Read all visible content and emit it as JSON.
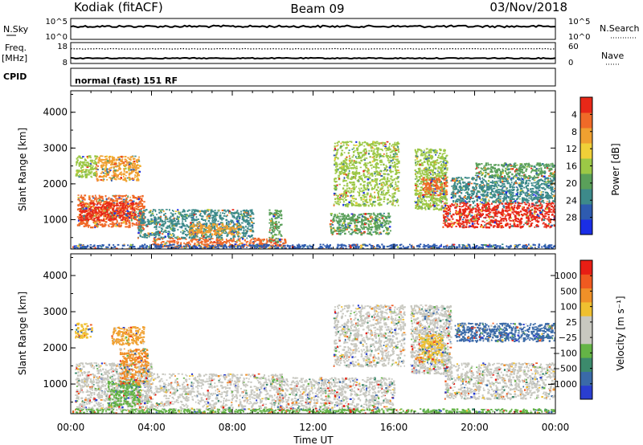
{
  "header": {
    "station": "Kodiak (fitACF)",
    "beam": "Beam 09",
    "date": "03/Nov/2018"
  },
  "strips": {
    "nsky": {
      "label": "N.Sky",
      "ticks": [
        "10^5",
        "10^0"
      ],
      "right_label": "N.Search",
      "right_ticks": [
        "10^5",
        "10^0"
      ],
      "line_level": 0.62
    },
    "freq": {
      "label": "Freq.",
      "unit": "[MHz]",
      "ticks": [
        "18",
        "8"
      ],
      "right_label": "Nave",
      "right_ticks": [
        "60",
        "0"
      ],
      "dotted_level": 0.7,
      "solid_level": 0.25
    },
    "cpid": {
      "label": "CPID",
      "text": "normal (fast) 151 RF"
    }
  },
  "chart_data": [
    {
      "type": "heatmap",
      "name": "power",
      "xlabel": "",
      "ylabel": "Slant Range [km]",
      "x_ticks": [
        "00:00",
        "04:00",
        "08:00",
        "12:00",
        "16:00",
        "20:00",
        "00:00"
      ],
      "x_range_hours": [
        0,
        24
      ],
      "y_ticks": [
        "1000",
        "2000",
        "3000",
        "4000"
      ],
      "y_range_km": [
        180,
        4600
      ],
      "colorbar": {
        "label": "Power [dB]",
        "ticks": [
          "4",
          "8",
          "12",
          "16",
          "20",
          "24",
          "28"
        ],
        "colors": [
          "#1a2ee6",
          "#2e5bb0",
          "#3d8a8a",
          "#5aa05a",
          "#9cc846",
          "#f0d038",
          "#f0a030",
          "#f06a28",
          "#e82818"
        ]
      },
      "regions": [
        {
          "t0": 0.3,
          "t1": 3.6,
          "r0": 800,
          "r1": 1700,
          "color": "#f06a28"
        },
        {
          "t0": 0.4,
          "t1": 3.2,
          "r0": 1000,
          "r1": 1500,
          "color": "#e82818"
        },
        {
          "t0": 1.2,
          "t1": 3.4,
          "r0": 2100,
          "r1": 2800,
          "color": "#f0a030"
        },
        {
          "t0": 0.2,
          "t1": 1.2,
          "r0": 2200,
          "r1": 2800,
          "color": "#9cc846"
        },
        {
          "t0": 3.3,
          "t1": 9.0,
          "r0": 500,
          "r1": 1300,
          "color": "#3d8a8a"
        },
        {
          "t0": 5.8,
          "t1": 8.4,
          "r0": 600,
          "r1": 900,
          "color": "#f0a030"
        },
        {
          "t0": 4.0,
          "t1": 10.6,
          "r0": 250,
          "r1": 500,
          "color": "#f06a28"
        },
        {
          "t0": 9.8,
          "t1": 10.4,
          "r0": 400,
          "r1": 1300,
          "color": "#5aa05a"
        },
        {
          "t0": 12.8,
          "t1": 15.8,
          "r0": 600,
          "r1": 1200,
          "color": "#5aa05a"
        },
        {
          "t0": 13.0,
          "t1": 16.2,
          "r0": 1400,
          "r1": 3200,
          "color": "#9cc846"
        },
        {
          "t0": 17.0,
          "t1": 18.6,
          "r0": 1300,
          "r1": 3000,
          "color": "#9cc846"
        },
        {
          "t0": 17.4,
          "t1": 18.6,
          "r0": 1700,
          "r1": 2200,
          "color": "#f06a28"
        },
        {
          "t0": 18.4,
          "t1": 24.0,
          "r0": 800,
          "r1": 1500,
          "color": "#e82818"
        },
        {
          "t0": 18.8,
          "t1": 24.0,
          "r0": 1500,
          "r1": 2200,
          "color": "#3d8a8a"
        },
        {
          "t0": 20.0,
          "t1": 24.0,
          "r0": 2200,
          "r1": 2600,
          "color": "#5aa05a"
        },
        {
          "t0": 0.0,
          "t1": 24.0,
          "r0": 190,
          "r1": 330,
          "color": "#2e5bb0"
        }
      ]
    },
    {
      "type": "heatmap",
      "name": "velocity",
      "xlabel": "Time UT",
      "ylabel": "Slant Range [km]",
      "x_ticks": [
        "00:00",
        "04:00",
        "08:00",
        "12:00",
        "16:00",
        "20:00",
        "00:00"
      ],
      "x_range_hours": [
        0,
        24
      ],
      "y_ticks": [
        "1000",
        "2000",
        "3000",
        "4000"
      ],
      "y_range_km": [
        180,
        4600
      ],
      "colorbar": {
        "label": "Velocity [m s⁻¹]",
        "ticks": [
          "1000",
          "500",
          "100",
          "25",
          "−25",
          "−100",
          "−500",
          "−1000"
        ],
        "colors": [
          "#2a3ed0",
          "#3a6aa8",
          "#3c8a6c",
          "#64b446",
          "#c8c8c0",
          "#c8c8c0",
          "#f0c030",
          "#f09028",
          "#f05a20",
          "#e81e14"
        ]
      },
      "regions": [
        {
          "t0": 0.2,
          "t1": 4.0,
          "r0": 300,
          "r1": 1600,
          "color": "#c8c8c0"
        },
        {
          "t0": 1.8,
          "t1": 3.4,
          "r0": 400,
          "r1": 1100,
          "color": "#64b446"
        },
        {
          "t0": 2.4,
          "t1": 3.8,
          "r0": 1000,
          "r1": 2000,
          "color": "#f09028"
        },
        {
          "t0": 2.0,
          "t1": 3.6,
          "r0": 2100,
          "r1": 2600,
          "color": "#f0a030"
        },
        {
          "t0": 0.2,
          "t1": 1.0,
          "r0": 2300,
          "r1": 2700,
          "color": "#f0c030"
        },
        {
          "t0": 3.6,
          "t1": 10.5,
          "r0": 300,
          "r1": 1300,
          "color": "#c8c8c0"
        },
        {
          "t0": 10.2,
          "t1": 16.0,
          "r0": 300,
          "r1": 1200,
          "color": "#c8c8c0"
        },
        {
          "t0": 13.0,
          "t1": 16.5,
          "r0": 1500,
          "r1": 3200,
          "color": "#c8c8c0"
        },
        {
          "t0": 16.8,
          "t1": 18.8,
          "r0": 1300,
          "r1": 3200,
          "color": "#c8c8c0"
        },
        {
          "t0": 17.2,
          "t1": 18.4,
          "r0": 1600,
          "r1": 2400,
          "color": "#f0c030"
        },
        {
          "t0": 18.5,
          "t1": 24.0,
          "r0": 600,
          "r1": 1600,
          "color": "#c8c8c0"
        },
        {
          "t0": 19.0,
          "t1": 24.0,
          "r0": 2200,
          "r1": 2700,
          "color": "#3a6aa8"
        },
        {
          "t0": 0.0,
          "t1": 24.0,
          "r0": 190,
          "r1": 330,
          "color": "#64b446"
        }
      ]
    }
  ]
}
